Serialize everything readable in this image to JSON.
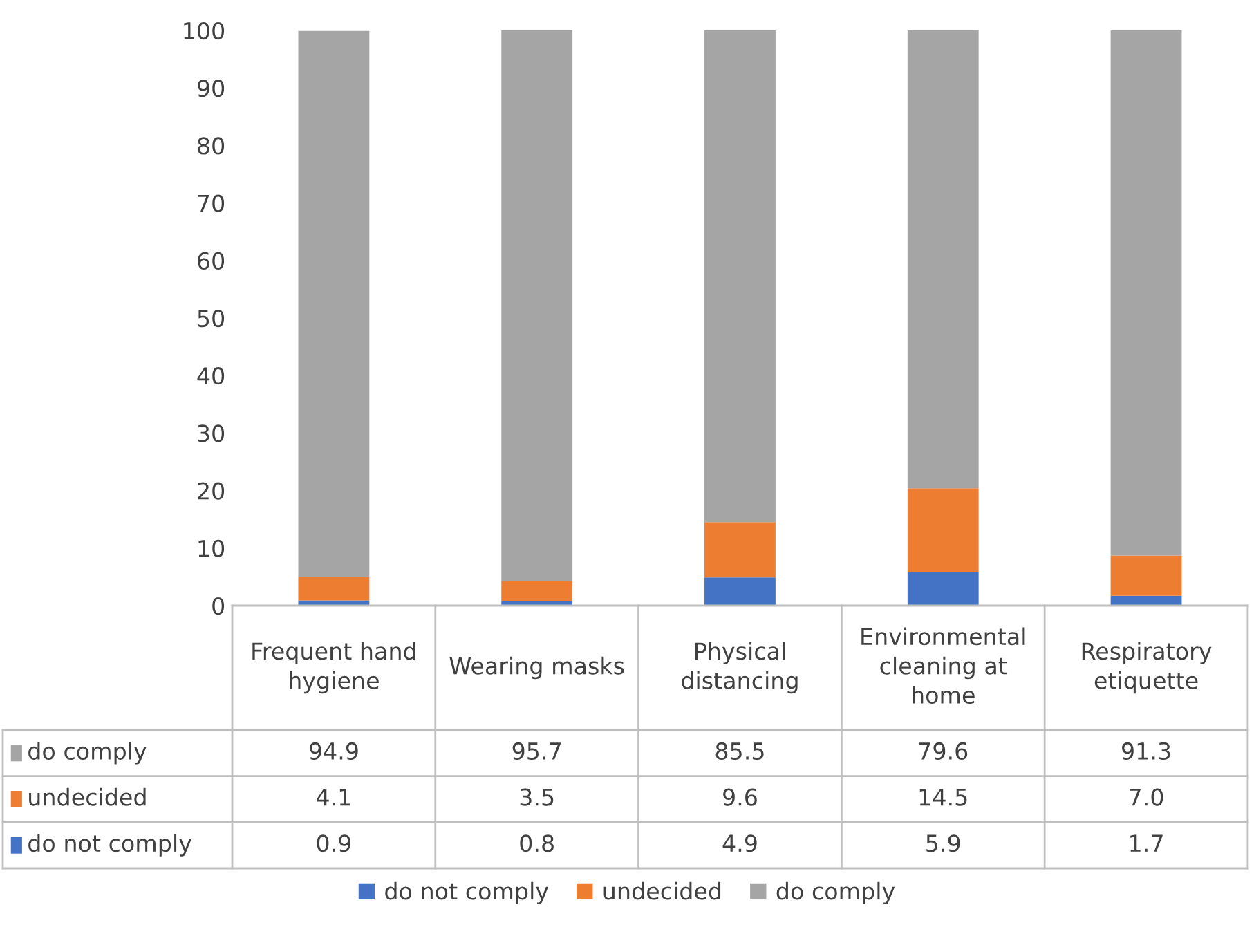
{
  "chart_data": {
    "type": "bar",
    "stacked": true,
    "categories": [
      "Frequent hand hygiene",
      "Wearing masks",
      "Physical distancing",
      "Environmental cleaning at home",
      "Respiratory etiquette"
    ],
    "series": [
      {
        "name": "do not comply",
        "color": "#4472c4",
        "values": [
          0.9,
          0.8,
          4.9,
          5.9,
          1.7
        ],
        "value_labels": [
          "0.9",
          "0.8",
          "4.9",
          "5.9",
          "1.7"
        ]
      },
      {
        "name": "undecided",
        "color": "#ed7d31",
        "values": [
          4.1,
          3.5,
          9.6,
          14.5,
          7.0
        ],
        "value_labels": [
          "4.1",
          "3.5",
          "9.6",
          "14.5",
          "7.0"
        ]
      },
      {
        "name": "do comply",
        "color": "#a5a5a5",
        "values": [
          94.9,
          95.7,
          85.5,
          79.6,
          91.3
        ],
        "value_labels": [
          "94.9",
          "95.7",
          "85.5",
          "79.6",
          "91.3"
        ]
      }
    ],
    "ylim": [
      0,
      100
    ],
    "yticks": [
      0,
      10,
      20,
      30,
      40,
      50,
      60,
      70,
      80,
      90,
      100
    ],
    "grid": false,
    "legend": "bottom"
  }
}
